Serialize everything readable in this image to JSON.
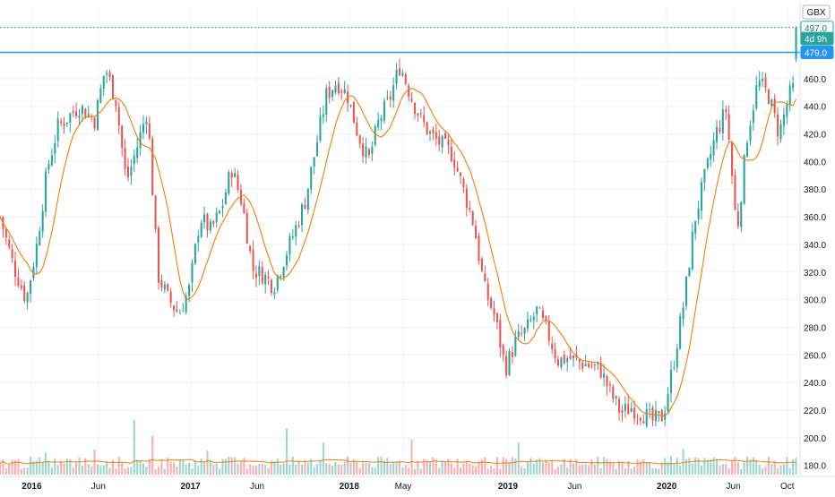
{
  "chart_data": {
    "type": "candlestick",
    "currency": "GBX",
    "ylim": [
      172,
      504
    ],
    "y_ticks": [
      180,
      200,
      220,
      240,
      260,
      280,
      300,
      320,
      340,
      360,
      380,
      400,
      420,
      440,
      460
    ],
    "x_ticks": [
      {
        "label": "2016",
        "t": 0.2
      },
      {
        "label": "Jun",
        "t": 0.62
      },
      {
        "label": "2017",
        "t": 1.2
      },
      {
        "label": "Jun",
        "t": 1.62
      },
      {
        "label": "2018",
        "t": 2.2
      },
      {
        "label": "May",
        "t": 2.54
      },
      {
        "label": "2019",
        "t": 3.2
      },
      {
        "label": "Jun",
        "t": 3.62
      },
      {
        "label": "2020",
        "t": 4.2
      },
      {
        "label": "Jun",
        "t": 4.62
      },
      {
        "label": "Oct",
        "t": 4.96
      }
    ],
    "price_labels": [
      {
        "text": "497.0",
        "value": 497,
        "color": "#26a69a",
        "text_color": "#1b7a70",
        "style": "outline"
      },
      {
        "text": "4d 9h",
        "value": 489,
        "color": "#26a69a",
        "text_color": "#ffffff",
        "style": "filled"
      },
      {
        "text": "479.0",
        "value": 479,
        "color": "#2196f3",
        "text_color": "#ffffff",
        "style": "filled"
      }
    ],
    "horizontal_line": {
      "value": 479,
      "color": "#2196f3"
    },
    "last_price_line": {
      "value": 497,
      "color": "#26a69a"
    },
    "colors": {
      "up": "#26a69a",
      "down": "#ef5350",
      "ma": "#f57c00",
      "grid": "#f0f3fa",
      "axis_text": "#131722"
    },
    "price_waypoints": [
      [
        0.0,
        360
      ],
      [
        0.05,
        325
      ],
      [
        0.1,
        300
      ],
      [
        0.14,
        340
      ],
      [
        0.18,
        395
      ],
      [
        0.22,
        425
      ],
      [
        0.3,
        440
      ],
      [
        0.36,
        430
      ],
      [
        0.4,
        468
      ],
      [
        0.44,
        445
      ],
      [
        0.48,
        385
      ],
      [
        0.52,
        410
      ],
      [
        0.56,
        438
      ],
      [
        0.6,
        318
      ],
      [
        0.64,
        300
      ],
      [
        0.68,
        290
      ],
      [
        0.72,
        308
      ],
      [
        0.76,
        360
      ],
      [
        0.8,
        350
      ],
      [
        0.84,
        365
      ],
      [
        0.88,
        395
      ],
      [
        0.92,
        370
      ],
      [
        0.96,
        322
      ],
      [
        1.0,
        318
      ],
      [
        1.04,
        310
      ],
      [
        1.08,
        330
      ],
      [
        1.12,
        350
      ],
      [
        1.16,
        372
      ],
      [
        1.2,
        410
      ],
      [
        1.24,
        448
      ],
      [
        1.28,
        458
      ],
      [
        1.32,
        448
      ],
      [
        1.36,
        420
      ],
      [
        1.4,
        400
      ],
      [
        1.44,
        430
      ],
      [
        1.48,
        445
      ],
      [
        1.52,
        470
      ],
      [
        1.56,
        448
      ],
      [
        1.6,
        430
      ],
      [
        1.64,
        418
      ],
      [
        1.68,
        412
      ],
      [
        1.72,
        405
      ],
      [
        1.76,
        380
      ],
      [
        1.8,
        355
      ],
      [
        1.84,
        308
      ],
      [
        1.88,
        288
      ],
      [
        1.92,
        250
      ],
      [
        1.96,
        270
      ],
      [
        2.0,
        278
      ],
      [
        2.04,
        292
      ],
      [
        2.08,
        276
      ],
      [
        2.12,
        256
      ],
      [
        2.16,
        258
      ],
      [
        2.2,
        255
      ],
      [
        2.24,
        252
      ],
      [
        2.28,
        250
      ],
      [
        2.32,
        232
      ],
      [
        2.36,
        218
      ],
      [
        2.4,
        222
      ],
      [
        2.44,
        218
      ],
      [
        2.48,
        212
      ],
      [
        2.52,
        216
      ],
      [
        2.56,
        255
      ],
      [
        2.6,
        300
      ],
      [
        2.64,
        358
      ],
      [
        2.68,
        390
      ],
      [
        2.72,
        420
      ],
      [
        2.76,
        438
      ],
      [
        2.8,
        348
      ],
      [
        2.84,
        420
      ],
      [
        2.88,
        458
      ],
      [
        2.92,
        448
      ],
      [
        2.96,
        420
      ],
      [
        3.0,
        448
      ],
      [
        3.04,
        462
      ]
    ],
    "volume_waypoints": [
      [
        0.0,
        0.12
      ],
      [
        0.1,
        0.2
      ],
      [
        0.3,
        0.18
      ],
      [
        0.6,
        0.16
      ],
      [
        1.0,
        0.12
      ],
      [
        1.4,
        0.1
      ],
      [
        1.8,
        0.08
      ],
      [
        2.2,
        0.09
      ],
      [
        2.6,
        0.08
      ],
      [
        3.0,
        0.1
      ]
    ]
  }
}
